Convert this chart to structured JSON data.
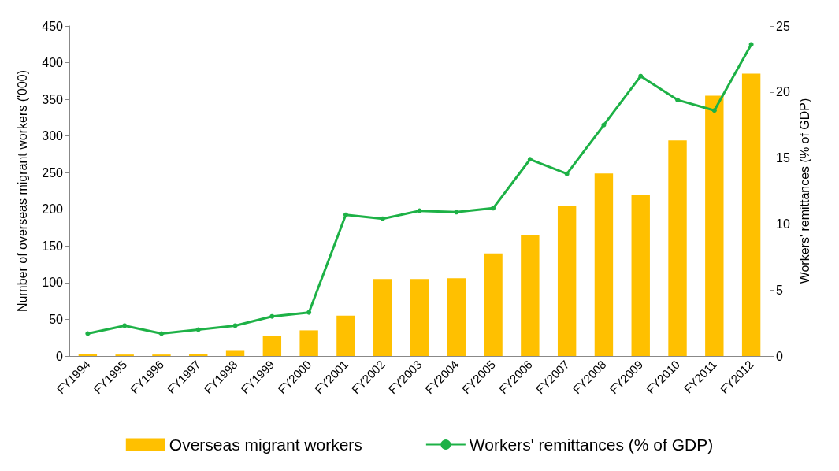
{
  "chart_data": {
    "type": "bar",
    "categories": [
      "FY1994",
      "FY1995",
      "FY1996",
      "FY1997",
      "FY1998",
      "FY1999",
      "FY2000",
      "FY2001",
      "FY2002",
      "FY2003",
      "FY2004",
      "FY2005",
      "FY2006",
      "FY2007",
      "FY2008",
      "FY2009",
      "FY2010",
      "FY2011",
      "FY2012"
    ],
    "series": [
      {
        "name": "Overseas migrant workers",
        "color": "#ffc000",
        "values": [
          3,
          2,
          2,
          3,
          7,
          27,
          35,
          55,
          105,
          105,
          106,
          140,
          165,
          205,
          249,
          220,
          294,
          355,
          385
        ]
      },
      {
        "name": "Workers' remittances (% of GDP)",
        "type": "line",
        "axis": "y2",
        "color": "#1db146",
        "values": [
          1.7,
          2.3,
          1.7,
          2.0,
          2.3,
          3.0,
          3.3,
          10.7,
          10.4,
          11.0,
          10.9,
          11.2,
          14.9,
          13.8,
          17.5,
          21.2,
          19.4,
          18.6,
          23.6
        ]
      }
    ],
    "ylabel": "Number of overseas migrant workers ('000)",
    "y2label": "Workers' remittances (% of GDP)",
    "ylim": [
      0,
      450
    ],
    "yticks": [
      0,
      50,
      100,
      150,
      200,
      250,
      300,
      350,
      400,
      450
    ],
    "y2lim": [
      0,
      25
    ],
    "y2ticks": [
      0,
      5,
      10,
      15,
      20,
      25
    ],
    "grid": false,
    "legend": "bottom",
    "marker": "circle",
    "line_style": "solid"
  }
}
